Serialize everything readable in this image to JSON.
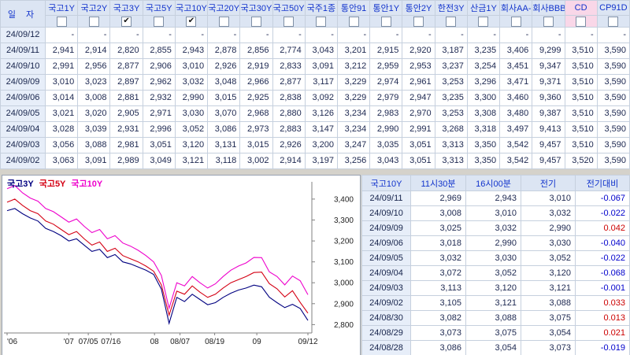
{
  "top_table": {
    "date_header": "일 자",
    "columns": [
      {
        "label": "국고1Y",
        "checked": false,
        "highlight": false
      },
      {
        "label": "국고2Y",
        "checked": false,
        "highlight": false
      },
      {
        "label": "국고3Y",
        "checked": true,
        "highlight": false
      },
      {
        "label": "국고5Y",
        "checked": false,
        "highlight": false
      },
      {
        "label": "국고10Y",
        "checked": true,
        "highlight": false
      },
      {
        "label": "국고20Y",
        "checked": false,
        "highlight": false
      },
      {
        "label": "국고30Y",
        "checked": false,
        "highlight": false
      },
      {
        "label": "국고50Y",
        "checked": false,
        "highlight": false
      },
      {
        "label": "국주1종",
        "checked": false,
        "highlight": false
      },
      {
        "label": "통안91",
        "checked": false,
        "highlight": false
      },
      {
        "label": "통안1Y",
        "checked": false,
        "highlight": false
      },
      {
        "label": "통안2Y",
        "checked": false,
        "highlight": false
      },
      {
        "label": "한전3Y",
        "checked": false,
        "highlight": false
      },
      {
        "label": "산금1Y",
        "checked": false,
        "highlight": false
      },
      {
        "label": "회사AA-",
        "checked": false,
        "highlight": false
      },
      {
        "label": "회사BBB-",
        "checked": false,
        "highlight": false
      },
      {
        "label": "CD",
        "checked": false,
        "highlight": true
      },
      {
        "label": "CP91D",
        "checked": false,
        "highlight": false
      }
    ],
    "rows": [
      {
        "date": "24/09/12",
        "values": [
          "-",
          "-",
          "-",
          "-",
          "-",
          "-",
          "-",
          "-",
          "-",
          "-",
          "-",
          "-",
          "-",
          "-",
          "-",
          "-",
          "-",
          "-"
        ]
      },
      {
        "date": "24/09/11",
        "values": [
          "2,941",
          "2,914",
          "2,820",
          "2,855",
          "2,943",
          "2,878",
          "2,856",
          "2,774",
          "3,043",
          "3,201",
          "2,915",
          "2,920",
          "3,187",
          "3,235",
          "3,406",
          "9,299",
          "3,510",
          "3,590"
        ]
      },
      {
        "date": "24/09/10",
        "values": [
          "2,991",
          "2,956",
          "2,877",
          "2,906",
          "3,010",
          "2,926",
          "2,919",
          "2,833",
          "3,091",
          "3,212",
          "2,959",
          "2,953",
          "3,237",
          "3,254",
          "3,451",
          "9,347",
          "3,510",
          "3,590"
        ]
      },
      {
        "date": "24/09/09",
        "values": [
          "3,010",
          "3,023",
          "2,897",
          "2,962",
          "3,032",
          "3,048",
          "2,966",
          "2,877",
          "3,117",
          "3,229",
          "2,974",
          "2,961",
          "3,253",
          "3,296",
          "3,471",
          "9,371",
          "3,510",
          "3,590"
        ]
      },
      {
        "date": "24/09/06",
        "values": [
          "3,014",
          "3,008",
          "2,881",
          "2,932",
          "2,990",
          "3,015",
          "2,925",
          "2,838",
          "3,092",
          "3,229",
          "2,979",
          "2,947",
          "3,235",
          "3,300",
          "3,460",
          "9,360",
          "3,510",
          "3,590"
        ]
      },
      {
        "date": "24/09/05",
        "values": [
          "3,021",
          "3,020",
          "2,905",
          "2,971",
          "3,030",
          "3,070",
          "2,968",
          "2,880",
          "3,126",
          "3,234",
          "2,983",
          "2,970",
          "3,253",
          "3,308",
          "3,480",
          "9,387",
          "3,510",
          "3,590"
        ]
      },
      {
        "date": "24/09/04",
        "values": [
          "3,028",
          "3,039",
          "2,931",
          "2,996",
          "3,052",
          "3,086",
          "2,973",
          "2,883",
          "3,147",
          "3,234",
          "2,990",
          "2,991",
          "3,268",
          "3,318",
          "3,497",
          "9,413",
          "3,510",
          "3,590"
        ]
      },
      {
        "date": "24/09/03",
        "values": [
          "3,056",
          "3,088",
          "2,981",
          "3,051",
          "3,120",
          "3,131",
          "3,015",
          "2,926",
          "3,200",
          "3,247",
          "3,035",
          "3,051",
          "3,313",
          "3,350",
          "3,542",
          "9,457",
          "3,510",
          "3,590"
        ]
      },
      {
        "date": "24/09/02",
        "values": [
          "3,063",
          "3,091",
          "2,989",
          "3,049",
          "3,121",
          "3,118",
          "3,002",
          "2,914",
          "3,197",
          "3,256",
          "3,043",
          "3,051",
          "3,313",
          "3,350",
          "3,542",
          "9,457",
          "3,520",
          "3,590"
        ]
      }
    ]
  },
  "chart": {
    "y_ticks": [
      {
        "v": 3.4,
        "label": "3,400"
      },
      {
        "v": 3.3,
        "label": "3,300"
      },
      {
        "v": 3.2,
        "label": "3,200"
      },
      {
        "v": 3.1,
        "label": "3,100"
      },
      {
        "v": 3.0,
        "label": "3,000"
      },
      {
        "v": 2.9,
        "label": "2,900"
      },
      {
        "v": 2.8,
        "label": "2,800"
      }
    ],
    "x_ticks": [
      {
        "pos": 0.0,
        "label": "'06"
      },
      {
        "pos": 0.205,
        "label": "'07"
      },
      {
        "pos": 0.27,
        "label": "07/05"
      },
      {
        "pos": 0.345,
        "label": "07/16"
      },
      {
        "pos": 0.49,
        "label": "08"
      },
      {
        "pos": 0.575,
        "label": "08/07"
      },
      {
        "pos": 0.69,
        "label": "08/19"
      },
      {
        "pos": 0.83,
        "label": "09"
      },
      {
        "pos": 1.0,
        "label": "09/12"
      }
    ]
  },
  "chart_data": {
    "type": "line",
    "title": "",
    "ylim": [
      2.76,
      3.46
    ],
    "grid": false,
    "legend_position": "top-left",
    "y_axis_side": "right",
    "x": [
      "06/03",
      "06/05",
      "06/10",
      "06/13",
      "06/17",
      "06/20",
      "06/24",
      "06/27",
      "07/01",
      "07/03",
      "07/05",
      "07/09",
      "07/11",
      "07/16",
      "07/18",
      "07/22",
      "07/24",
      "07/26",
      "07/30",
      "08/01",
      "08/02",
      "08/05",
      "08/06",
      "08/08",
      "08/12",
      "08/14",
      "08/16",
      "08/19",
      "08/21",
      "08/23",
      "08/27",
      "08/29",
      "09/02",
      "09/03",
      "09/04",
      "09/05",
      "09/06",
      "09/09",
      "09/10",
      "09/11"
    ],
    "series": [
      {
        "name": "국고3Y",
        "color": "#000080",
        "values": [
          3.345,
          3.355,
          3.33,
          3.31,
          3.295,
          3.26,
          3.245,
          3.225,
          3.2,
          3.21,
          3.18,
          3.15,
          3.16,
          3.12,
          3.135,
          3.1,
          3.09,
          3.075,
          3.06,
          3.04,
          2.97,
          2.806,
          2.93,
          2.91,
          2.945,
          2.92,
          2.895,
          2.905,
          2.93,
          2.95,
          2.965,
          2.975,
          2.989,
          2.981,
          2.931,
          2.905,
          2.881,
          2.897,
          2.877,
          2.82
        ]
      },
      {
        "name": "국고5Y",
        "color": "#d40014",
        "values": [
          3.385,
          3.4,
          3.37,
          3.345,
          3.33,
          3.295,
          3.28,
          3.255,
          3.23,
          3.245,
          3.21,
          3.18,
          3.195,
          3.15,
          3.165,
          3.13,
          3.115,
          3.1,
          3.08,
          3.055,
          2.99,
          2.845,
          2.96,
          2.945,
          2.985,
          2.955,
          2.93,
          2.945,
          2.975,
          3.0,
          3.015,
          3.03,
          3.049,
          3.051,
          2.996,
          2.971,
          2.932,
          2.962,
          2.906,
          2.855
        ]
      },
      {
        "name": "국고10Y",
        "color": "#ee00cc",
        "values": [
          3.45,
          3.465,
          3.43,
          3.405,
          3.39,
          3.355,
          3.34,
          3.315,
          3.29,
          3.305,
          3.27,
          3.24,
          3.255,
          3.21,
          3.225,
          3.19,
          3.175,
          3.155,
          3.13,
          3.1,
          3.035,
          2.878,
          3.0,
          2.985,
          3.03,
          3.0,
          2.975,
          2.995,
          3.03,
          3.06,
          3.08,
          3.095,
          3.121,
          3.12,
          3.052,
          3.03,
          2.99,
          3.032,
          3.01,
          2.943
        ]
      }
    ]
  },
  "right_table": {
    "headers": [
      "국고10Y",
      "11시30분",
      "16시00분",
      "전기",
      "전기대비"
    ],
    "rows": [
      {
        "date": "24/09/11",
        "values": [
          "2,969",
          "2,943",
          "3,010"
        ],
        "diff": "-0.067"
      },
      {
        "date": "24/09/10",
        "values": [
          "3,008",
          "3,010",
          "3,032"
        ],
        "diff": "-0.022"
      },
      {
        "date": "24/09/09",
        "values": [
          "3,025",
          "3,032",
          "2,990"
        ],
        "diff": "0.042"
      },
      {
        "date": "24/09/06",
        "values": [
          "3,018",
          "2,990",
          "3,030"
        ],
        "diff": "-0.040"
      },
      {
        "date": "24/09/05",
        "values": [
          "3,032",
          "3,030",
          "3,052"
        ],
        "diff": "-0.022"
      },
      {
        "date": "24/09/04",
        "values": [
          "3,072",
          "3,052",
          "3,120"
        ],
        "diff": "-0.068"
      },
      {
        "date": "24/09/03",
        "values": [
          "3,113",
          "3,120",
          "3,121"
        ],
        "diff": "-0.001"
      },
      {
        "date": "24/09/02",
        "values": [
          "3,105",
          "3,121",
          "3,088"
        ],
        "diff": "0.033"
      },
      {
        "date": "24/08/30",
        "values": [
          "3,082",
          "3,088",
          "3,075"
        ],
        "diff": "0.013"
      },
      {
        "date": "24/08/29",
        "values": [
          "3,073",
          "3,075",
          "3,054"
        ],
        "diff": "0.021"
      },
      {
        "date": "24/08/28",
        "values": [
          "3,086",
          "3,054",
          "3,073"
        ],
        "diff": "-0.019"
      }
    ]
  }
}
